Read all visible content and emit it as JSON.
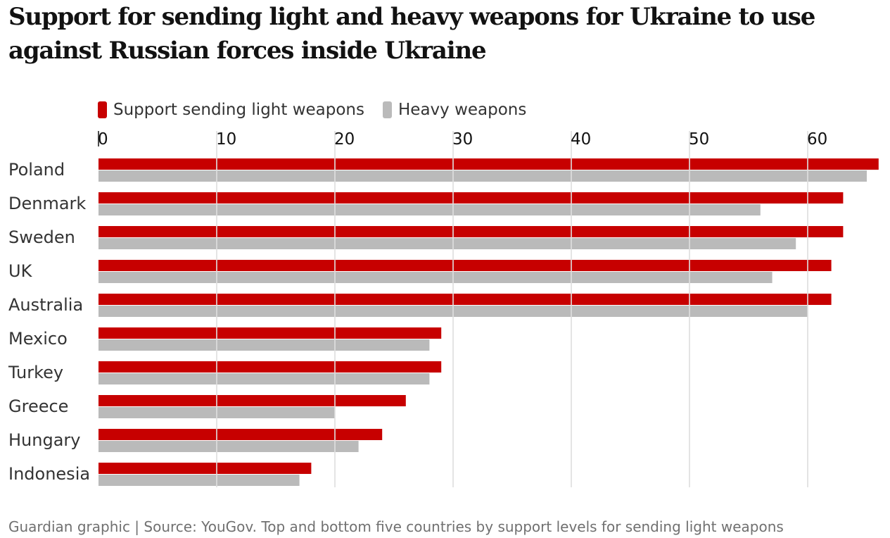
{
  "chart_data": {
    "type": "bar",
    "orientation": "horizontal",
    "title": "Support for sending light and heavy weapons for Ukraine to use against Russian forces inside Ukraine",
    "categories": [
      "Poland",
      "Denmark",
      "Sweden",
      "UK",
      "Australia",
      "Mexico",
      "Turkey",
      "Greece",
      "Hungary",
      "Indonesia"
    ],
    "series": [
      {
        "name": "Support sending light weapons",
        "color": "#c70000",
        "values": [
          66,
          63,
          63,
          62,
          62,
          29,
          29,
          26,
          24,
          18
        ]
      },
      {
        "name": "Heavy weapons",
        "color": "#bababa",
        "values": [
          65,
          56,
          59,
          57,
          60,
          28,
          28,
          20,
          22,
          17
        ]
      }
    ],
    "xlim": [
      0,
      66
    ],
    "xticks": [
      0,
      10,
      20,
      30,
      40,
      50,
      60
    ],
    "grid": true,
    "legend_position": "top",
    "xlabel": "",
    "ylabel": ""
  },
  "source": "Guardian graphic | Source: YouGov. Top and bottom five countries by support levels for sending light weapons"
}
